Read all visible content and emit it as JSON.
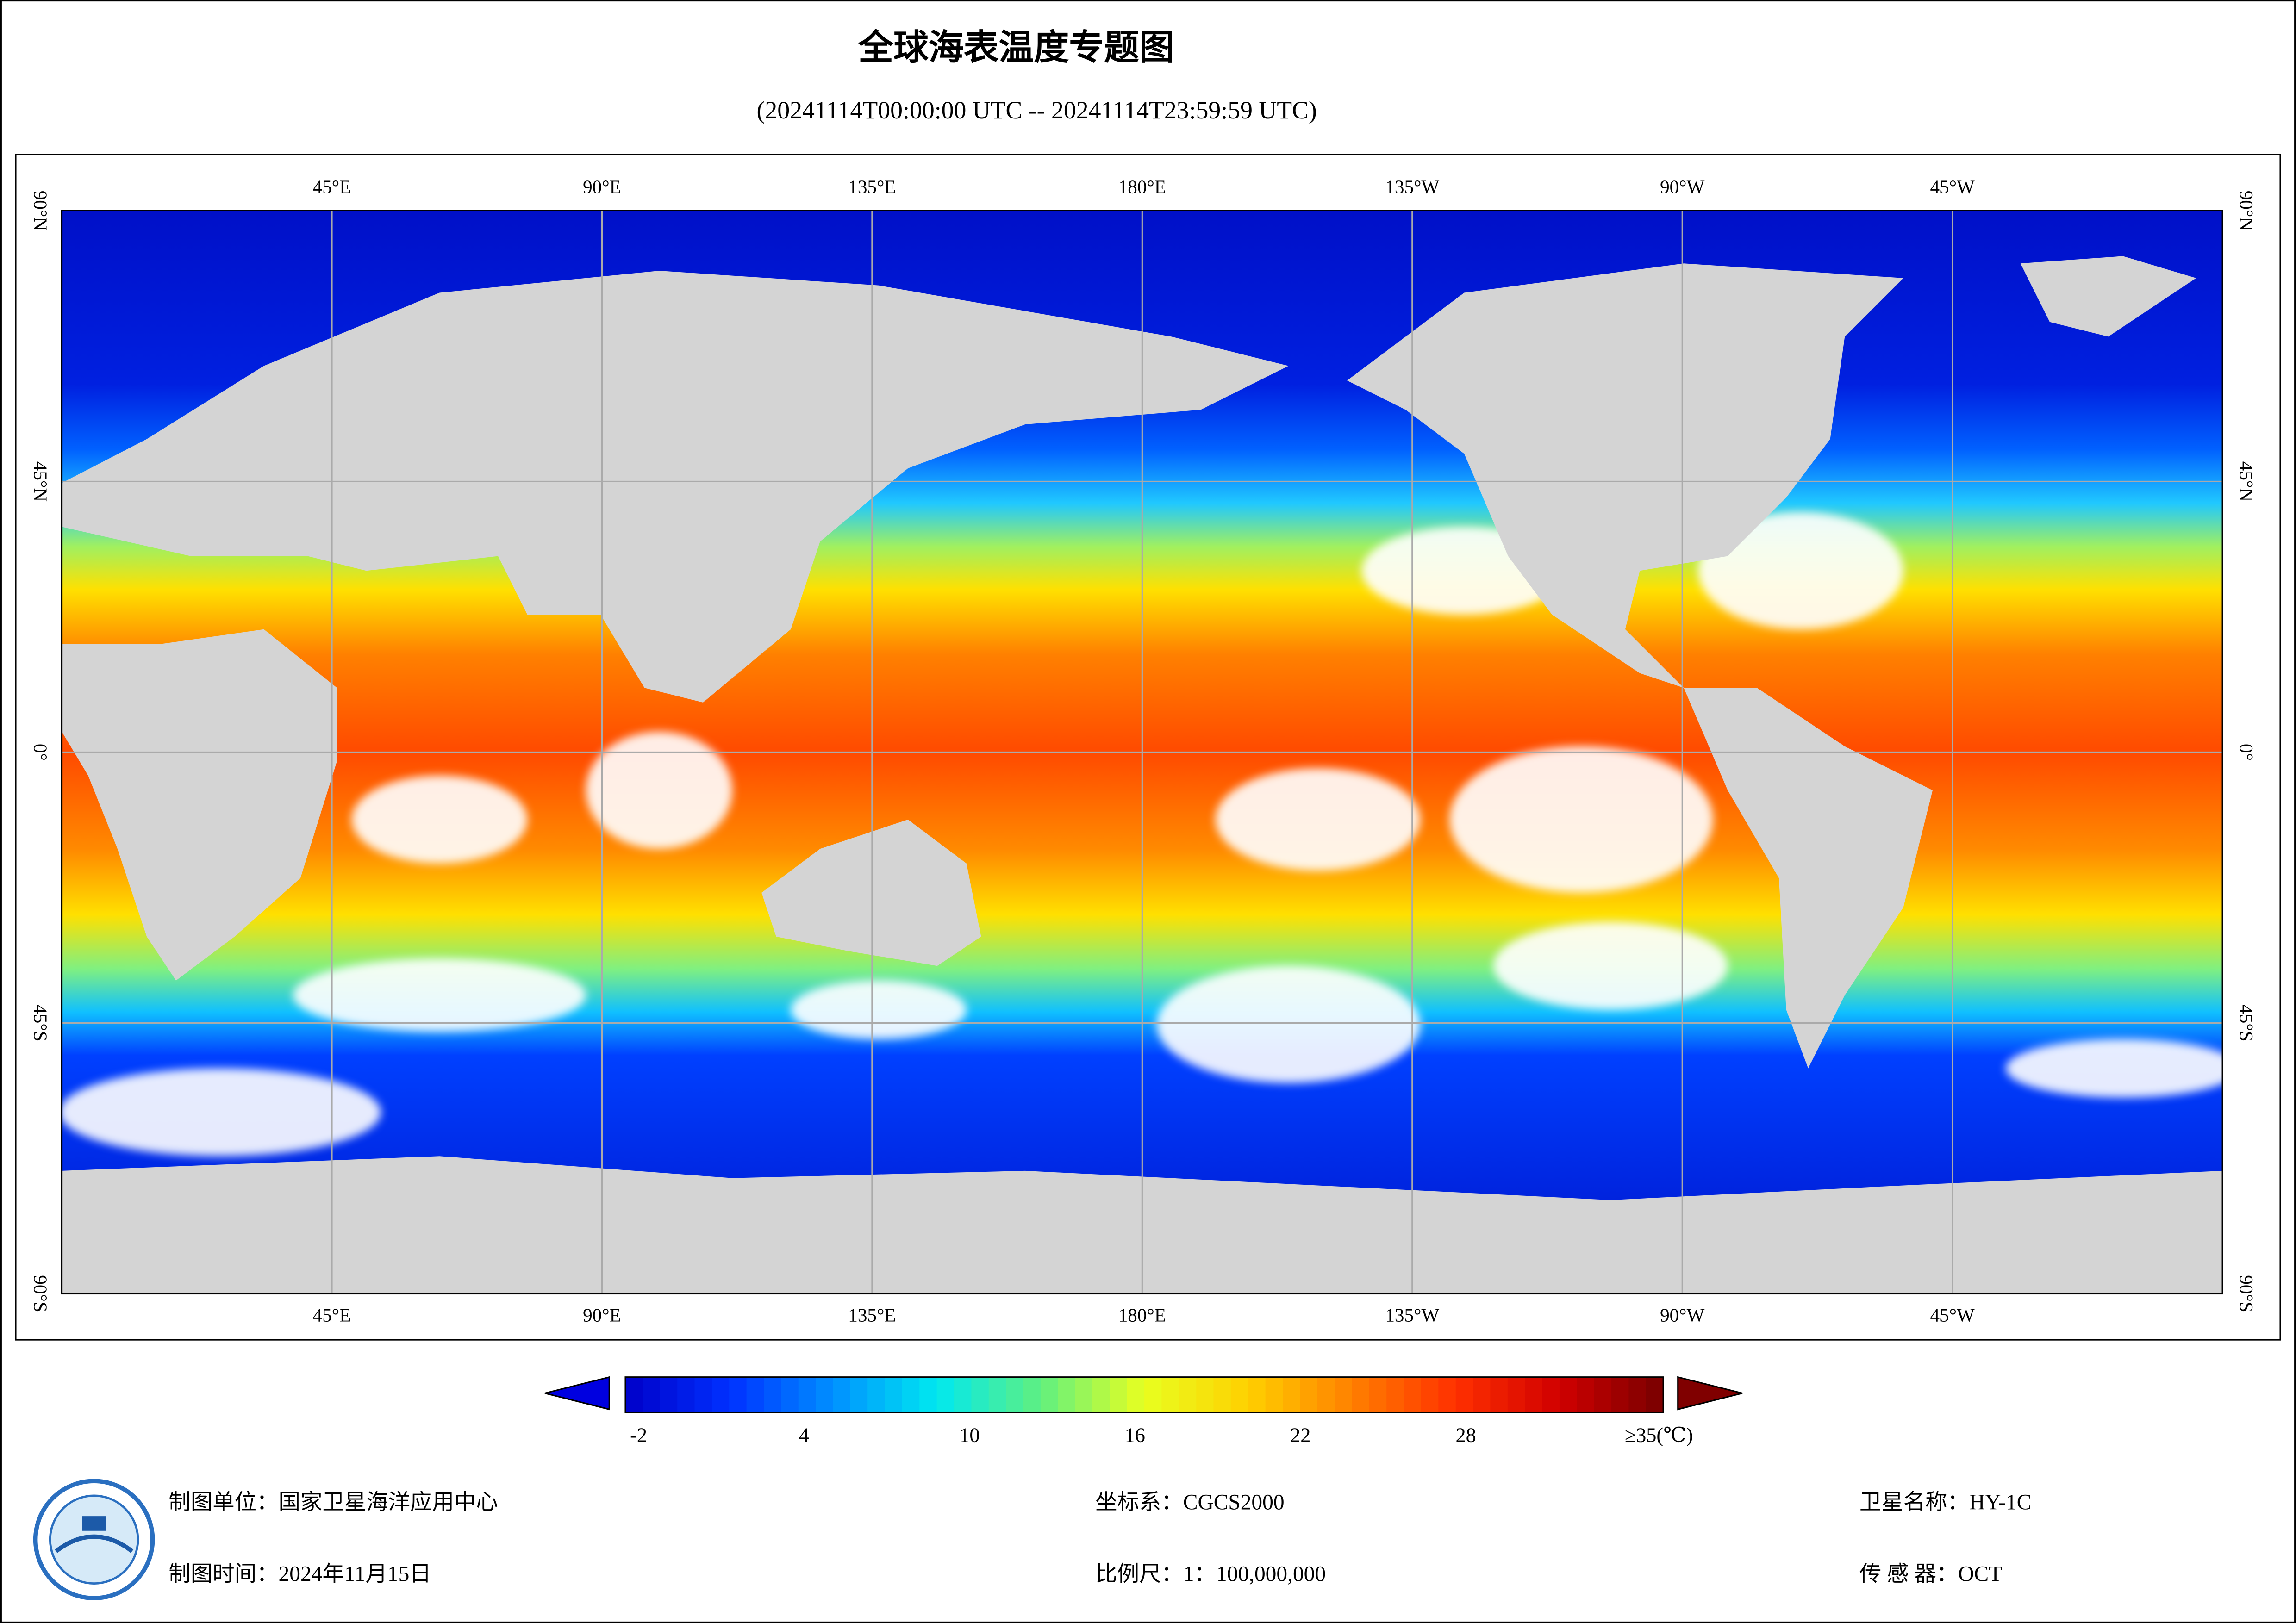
{
  "title": "全球海表温度专题图",
  "subtitle": "(20241114T00:00:00 UTC -- 20241114T23:59:59 UTC)",
  "map": {
    "lon_labels": [
      "45°E",
      "90°E",
      "135°E",
      "180°E",
      "135°W",
      "90°W",
      "45°W"
    ],
    "lat_labels": [
      "90°N",
      "45°N",
      "0°",
      "45°S",
      "90°S"
    ]
  },
  "colorbar": {
    "range": [
      -2,
      35
    ],
    "colors": [
      "#0000c8",
      "#0030ff",
      "#0090ff",
      "#00e8f0",
      "#60f080",
      "#e8ff20",
      "#ffd000",
      "#ff8000",
      "#ff3000",
      "#d00000",
      "#780000"
    ],
    "ticks": [
      -2,
      4,
      10,
      16,
      22,
      28,
      {
        "value": 35,
        "label": "≥35(℃)"
      }
    ]
  },
  "footer": {
    "unit": "制图单位：国家卫星海洋应用中心",
    "date": "制图时间：2024年11月15日",
    "crs": "坐标系：CGCS2000",
    "scale": "比例尺：1：100,000,000",
    "satellite": "卫星名称：HY-1C",
    "sensor": "传 感 器：OCT"
  }
}
